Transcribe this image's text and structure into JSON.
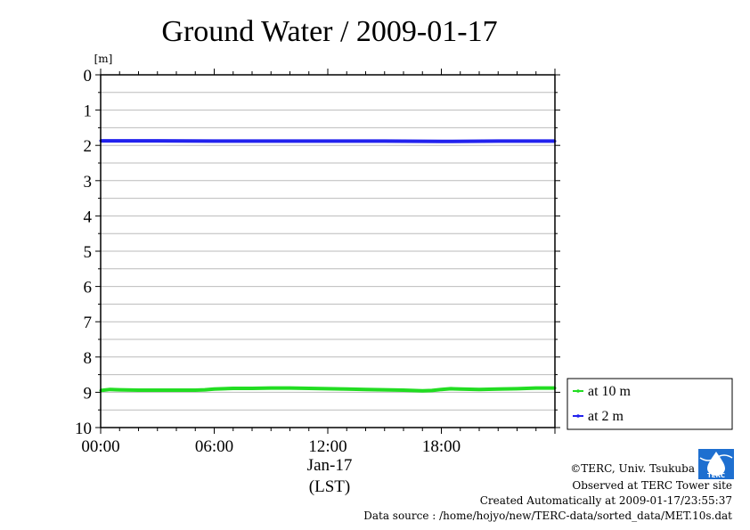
{
  "chart_data": {
    "type": "line",
    "title": "Ground Water / 2009-01-17",
    "ylabel": "[m]",
    "ylim": [
      0,
      10
    ],
    "y_inverted": true,
    "yticks": [
      "0",
      "1",
      "2",
      "3",
      "4",
      "5",
      "6",
      "7",
      "8",
      "9",
      "10"
    ],
    "xlim_hours": [
      0,
      24
    ],
    "xticks": [
      {
        "hour": 0,
        "label": "00:00"
      },
      {
        "hour": 6,
        "label": "06:00"
      },
      {
        "hour": 12,
        "label": "12:00"
      },
      {
        "hour": 18,
        "label": "18:00"
      }
    ],
    "x_date_label": "Jan-17",
    "x_unit_label": "(LST)",
    "grid": "horizontal minor gridlines every 0.5 m",
    "legend_position": "right",
    "series": [
      {
        "name": "at 10 m",
        "color": "#22dd22",
        "hours": [
          0,
          0.5,
          1,
          2,
          3,
          4,
          5,
          5.5,
          6,
          7,
          8,
          9,
          10,
          11,
          12,
          13,
          14,
          15,
          16,
          16.5,
          17,
          17.5,
          18,
          18.5,
          19,
          20,
          21,
          22,
          23,
          24
        ],
        "values": [
          8.95,
          8.92,
          8.93,
          8.94,
          8.94,
          8.94,
          8.94,
          8.93,
          8.91,
          8.89,
          8.89,
          8.88,
          8.88,
          8.89,
          8.9,
          8.91,
          8.92,
          8.93,
          8.94,
          8.95,
          8.96,
          8.95,
          8.92,
          8.9,
          8.91,
          8.92,
          8.91,
          8.9,
          8.88,
          8.88
        ]
      },
      {
        "name": "at 2 m",
        "color": "#2222ee",
        "hours": [
          0,
          3,
          6,
          9,
          12,
          15,
          18,
          21,
          24
        ],
        "values": [
          1.87,
          1.87,
          1.88,
          1.88,
          1.88,
          1.88,
          1.89,
          1.88,
          1.88
        ]
      }
    ]
  },
  "footer": {
    "copyright": "©TERC, Univ. Tsukuba",
    "site": "Observed at TERC Tower site",
    "created": "Created Automatically at 2009-01-17/23:55:37",
    "source": "Data source : /home/hojyo/new/TERC-data/sorted_data/MET.10s.dat",
    "logo_text": "TERC"
  }
}
